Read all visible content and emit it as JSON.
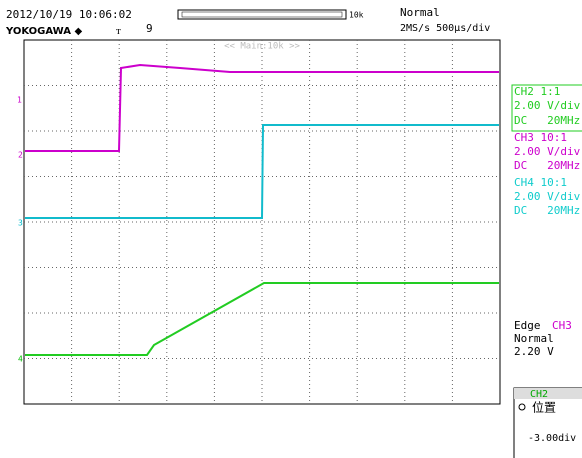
{
  "header": {
    "datetime": "2012/10/19 10:06:02",
    "brand": "YOKOGAWA ◆",
    "trigger_mark": "ᴛ",
    "count": "9",
    "record_length": "10k",
    "mode": "Normal",
    "rate": "2MS/s 500μs/div"
  },
  "screen": {
    "zoom_label": "<< Main:10k >>",
    "markers": [
      "1",
      "2",
      "3",
      "4"
    ]
  },
  "channels": [
    {
      "name": "CH2 1:1",
      "scale": "2.00 V/div",
      "coupling": "DC   20MHz"
    },
    {
      "name": "CH3 10:1",
      "scale": "2.00 V/div",
      "coupling": "DC   20MHz"
    },
    {
      "name": "CH4 10:1",
      "scale": "2.00 V/div",
      "coupling": "DC   20MHz"
    }
  ],
  "trigger": {
    "type": "Edge",
    "source": "CH3",
    "mode": "Normal",
    "level": "2.20 V"
  },
  "position_panel": {
    "channel": "CH2",
    "label": "位置",
    "value": "-3.00div"
  }
}
